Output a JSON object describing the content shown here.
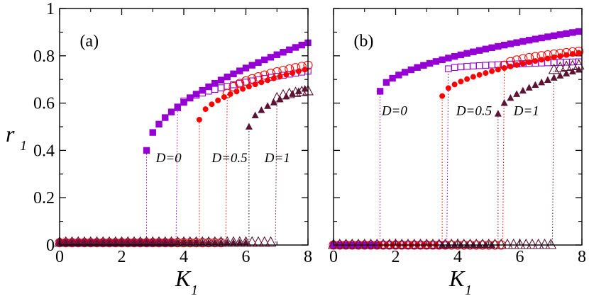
{
  "figure": {
    "ylabel": {
      "main": "r",
      "sub": "1"
    },
    "colors": {
      "purple": "#9400d3",
      "red": "#ff0000",
      "maroon": "#5b1433",
      "black": "#000000"
    }
  },
  "chart_data": [
    {
      "type": "scatter",
      "panel_label": "(a)",
      "xlabel": {
        "main": "K",
        "sub": "1"
      },
      "xlim": [
        0,
        8
      ],
      "ylim": [
        0,
        1
      ],
      "xticks": [
        "0",
        "2",
        "4",
        "6",
        "8"
      ],
      "yticks": [
        "0",
        "0.2",
        "0.4",
        "0.6",
        "0.8",
        "1"
      ],
      "annotations": [
        {
          "text": "D=0",
          "x": 3.1,
          "y": 0.35
        },
        {
          "text": "D=0.5",
          "x": 4.9,
          "y": 0.35
        },
        {
          "text": "D=1",
          "x": 6.6,
          "y": 0.35
        }
      ],
      "series": [
        {
          "marker": "filled-square",
          "color": "#9400d3",
          "branch": "forward",
          "off_y": 0.01,
          "x_start": 0.0,
          "jump_x": 2.8,
          "x_end": 8.0,
          "y_jump": 0.4,
          "y_end": 0.855,
          "jump_drop": 0.0,
          "jump_color": "#9400d3"
        },
        {
          "marker": "open-square",
          "color": "#9400d3",
          "branch": "backward",
          "off_y": 0.01,
          "x_start": 0.0,
          "jump_x": 3.8,
          "x_end": 8.0,
          "y_jump": 0.58,
          "y_end": 0.735,
          "jump_drop": 3.8,
          "jump_color": "#9400d3"
        },
        {
          "marker": "filled-circle",
          "color": "#ff0000",
          "branch": "forward",
          "off_y": 0.01,
          "x_start": 0.0,
          "jump_x": 4.5,
          "x_end": 8.0,
          "y_jump": 0.53,
          "y_end": 0.745,
          "jump_drop": 0.0,
          "jump_color": "#ff0000"
        },
        {
          "marker": "open-circle",
          "color": "#ff0000",
          "branch": "backward",
          "off_y": 0.01,
          "x_start": 0.0,
          "jump_x": 5.4,
          "x_end": 8.0,
          "y_jump": 0.64,
          "y_end": 0.76,
          "jump_drop": 5.4,
          "jump_color": "#ff0000"
        },
        {
          "marker": "filled-triangle",
          "color": "#5b1433",
          "branch": "forward",
          "off_y": 0.01,
          "x_start": 0.0,
          "jump_x": 6.1,
          "x_end": 8.0,
          "y_jump": 0.5,
          "y_end": 0.665,
          "jump_drop": 0.0,
          "jump_color": "#000000"
        },
        {
          "marker": "open-triangle",
          "color": "#5b1433",
          "branch": "backward",
          "off_y": 0.01,
          "x_start": 0.0,
          "jump_x": 7.0,
          "x_end": 8.0,
          "y_jump": 0.62,
          "y_end": 0.65,
          "jump_drop": 7.0,
          "jump_color": "#5b1433"
        }
      ]
    },
    {
      "type": "scatter",
      "panel_label": "(b)",
      "xlabel": {
        "main": "K",
        "sub": "1"
      },
      "xlim": [
        0,
        8
      ],
      "ylim": [
        0,
        1
      ],
      "xticks": [
        "0",
        "2",
        "4",
        "6",
        "8"
      ],
      "yticks": [
        "0",
        "0.2",
        "0.4",
        "0.6",
        "0.8",
        "1"
      ],
      "annotations": [
        {
          "text": "D=0",
          "x": 1.55,
          "y": 0.55
        },
        {
          "text": "D=0.5",
          "x": 3.95,
          "y": 0.55
        },
        {
          "text": "D=1",
          "x": 5.8,
          "y": 0.55
        }
      ],
      "series": [
        {
          "marker": "filled-square",
          "color": "#9400d3",
          "branch": "forward",
          "off_y": 0.0,
          "x_start": 0.0,
          "jump_x": 1.5,
          "x_end": 8.0,
          "y_jump": 0.65,
          "y_end": 0.905,
          "jump_drop": 0.0,
          "jump_color": "#9400d3"
        },
        {
          "marker": "open-square",
          "color": "#9400d3",
          "branch": "backward",
          "off_y": 0.0,
          "x_start": 0.0,
          "jump_x": 3.7,
          "x_end": 8.0,
          "y_jump": 0.745,
          "y_end": 0.775,
          "jump_drop": 3.85,
          "jump_color": "#9400d3"
        },
        {
          "marker": "filled-circle",
          "color": "#ff0000",
          "branch": "forward",
          "off_y": 0.0,
          "x_start": 1.5,
          "jump_x": 3.5,
          "x_end": 8.0,
          "y_jump": 0.63,
          "y_end": 0.815,
          "jump_drop": 0.0,
          "jump_color": "#ff0000"
        },
        {
          "marker": "open-circle",
          "color": "#ff0000",
          "branch": "backward",
          "off_y": 0.0,
          "x_start": 0.0,
          "jump_x": 5.5,
          "x_end": 8.0,
          "y_jump": 0.76,
          "y_end": 0.82,
          "jump_drop": 5.5,
          "jump_color": "#ff0000"
        },
        {
          "marker": "filled-triangle",
          "color": "#5b1433",
          "branch": "forward",
          "off_y": 0.0,
          "x_start": 3.5,
          "jump_x": 5.3,
          "x_end": 8.0,
          "y_jump": 0.555,
          "y_end": 0.745,
          "jump_drop": 0.0,
          "jump_color": "#5b1433"
        },
        {
          "marker": "open-triangle",
          "color": "#5b1433",
          "branch": "backward",
          "off_y": 0.0,
          "x_start": 0.0,
          "jump_x": 7.1,
          "x_end": 8.0,
          "y_jump": 0.74,
          "y_end": 0.76,
          "jump_drop": 7.1,
          "jump_color": "#5b1433"
        }
      ]
    }
  ]
}
